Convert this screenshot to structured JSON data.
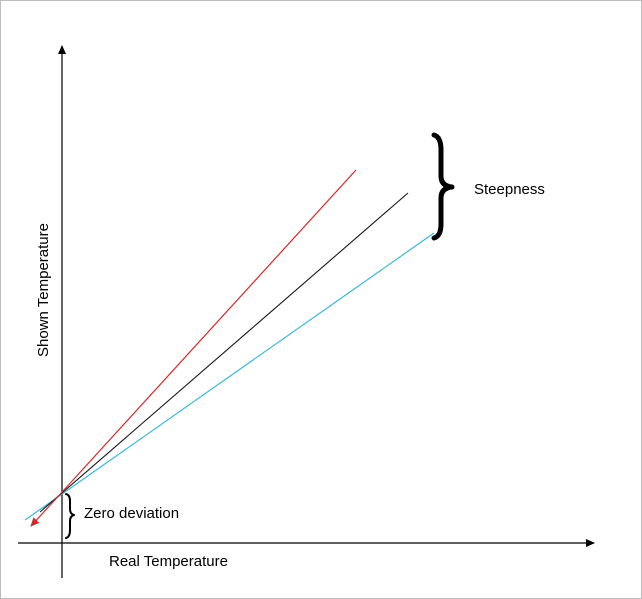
{
  "diagram": {
    "x_axis_label": "Real Temperature",
    "y_axis_label": "Shown Temperature",
    "steepness_label": "Steepness",
    "zero_deviation_label": "Zero deviation"
  },
  "colors": {
    "steep_line": "#cc2a2a",
    "reference_line": "#1a1a1a",
    "shallow_line": "#3ab8d8",
    "axis": "#000000",
    "frame": "#bdbdbd"
  }
}
